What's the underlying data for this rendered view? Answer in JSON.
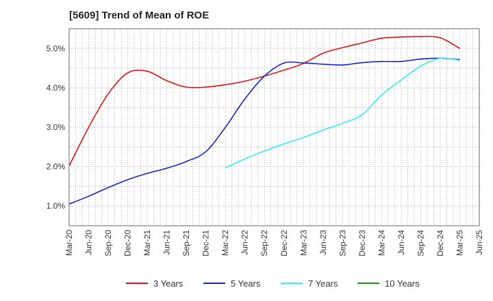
{
  "chart_data": {
    "type": "line",
    "title": "[5609]  Trend of Mean of ROE",
    "xlabel": "",
    "ylabel": "",
    "x": [
      "Mar-20",
      "Jun-20",
      "Sep-20",
      "Dec-20",
      "Mar-21",
      "Jun-21",
      "Sep-21",
      "Dec-21",
      "Mar-22",
      "Jun-22",
      "Sep-22",
      "Dec-22",
      "Mar-23",
      "Jun-23",
      "Sep-23",
      "Dec-23",
      "Mar-24",
      "Jun-24",
      "Sep-24",
      "Dec-24",
      "Mar-25",
      "Jun-25"
    ],
    "ylim": [
      0.5,
      5.5
    ],
    "yticks": [
      1.0,
      2.0,
      3.0,
      4.0,
      5.0
    ],
    "ytick_labels": [
      "1.0%",
      "2.0%",
      "3.0%",
      "4.0%",
      "5.0%"
    ],
    "grid": true,
    "legend_position": "bottom",
    "series": [
      {
        "name": "3 Years",
        "color": "#dd1111",
        "values": [
          2.02,
          3.0,
          3.85,
          4.38,
          4.42,
          4.18,
          4.02,
          4.02,
          4.08,
          4.17,
          4.3,
          4.45,
          4.62,
          4.88,
          5.02,
          5.14,
          5.26,
          5.29,
          5.3,
          5.27,
          5.0,
          null
        ]
      },
      {
        "name": "5 Years",
        "color": "#1122cc",
        "values": [
          1.05,
          1.25,
          1.47,
          1.67,
          1.83,
          1.96,
          2.13,
          2.38,
          3.0,
          3.72,
          4.3,
          4.63,
          4.63,
          4.6,
          4.58,
          4.64,
          4.67,
          4.67,
          4.73,
          4.75,
          4.72,
          null
        ]
      },
      {
        "name": "7 Years",
        "color": "#33eeee",
        "values": [
          null,
          null,
          null,
          null,
          null,
          null,
          null,
          null,
          1.97,
          2.2,
          2.4,
          2.58,
          2.74,
          2.93,
          3.1,
          3.32,
          3.82,
          4.2,
          4.55,
          4.75,
          4.7,
          null
        ]
      },
      {
        "name": "10 Years",
        "color": "#228822",
        "values": [
          null,
          null,
          null,
          null,
          null,
          null,
          null,
          null,
          null,
          null,
          null,
          null,
          null,
          null,
          null,
          null,
          null,
          null,
          null,
          null,
          null,
          null
        ]
      }
    ]
  }
}
